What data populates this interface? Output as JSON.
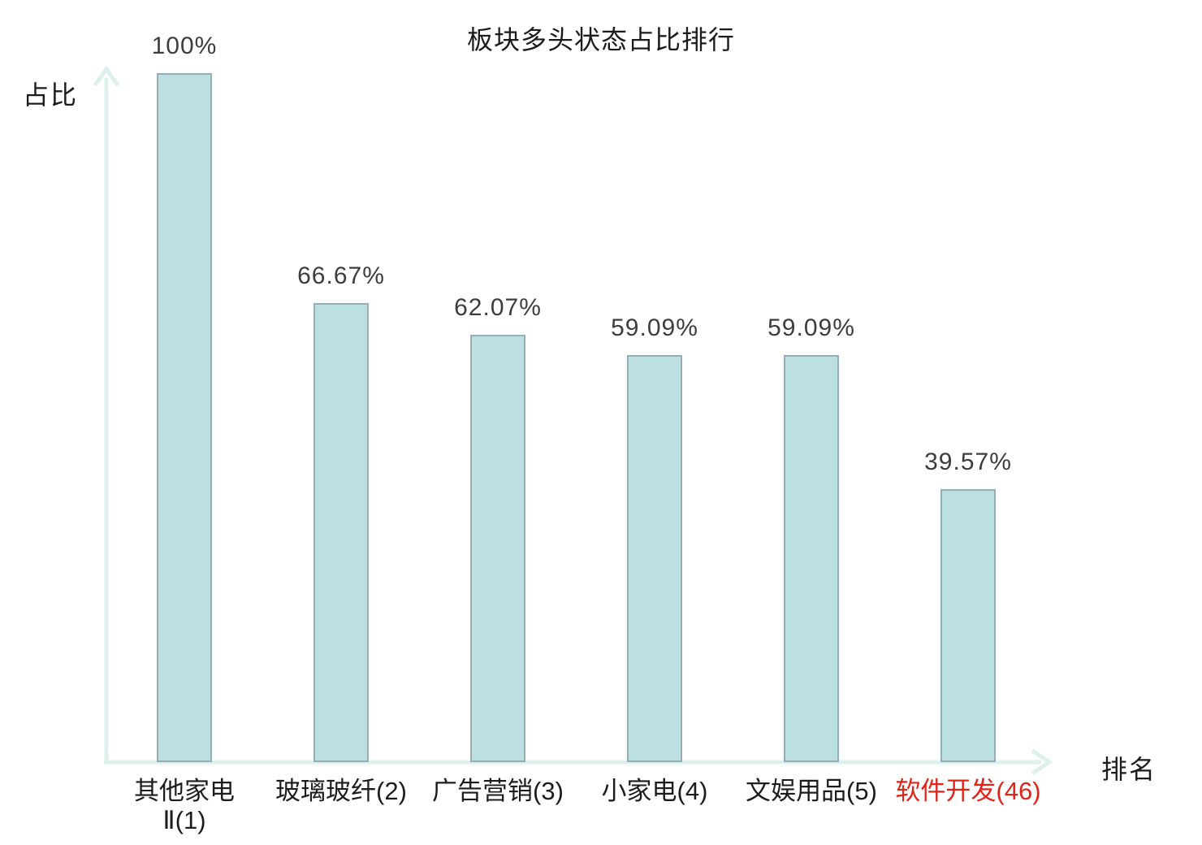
{
  "title": "板块多头状态占比排行",
  "axes": {
    "y_label": "占比",
    "x_label": "排名"
  },
  "colors": {
    "bar_fill": "#bddfe2",
    "bar_border": "#93afb3",
    "axis": "#def0ee",
    "value_label": "#3d3d3d",
    "category_label": "#1c1c1c",
    "category_highlight": "#e2231a",
    "background": "#ffffff"
  },
  "chart_data": {
    "type": "bar",
    "title": "板块多头状态占比排行",
    "xlabel": "排名",
    "ylabel": "占比",
    "ylim": [
      0,
      100
    ],
    "grid": false,
    "legend": false,
    "categories": [
      "其他家电Ⅱ(1)",
      "玻璃玻纤(2)",
      "广告营销(3)",
      "小家电(4)",
      "文娱用品(5)",
      "软件开发(46)"
    ],
    "category_display": [
      "其他家电\nⅡ(1)",
      "玻璃玻纤(2)",
      "广告营销(3)",
      "小家电(4)",
      "文娱用品(5)",
      "软件开发(46)"
    ],
    "values": [
      100,
      66.67,
      62.07,
      59.09,
      59.09,
      39.57
    ],
    "value_labels": [
      "100%",
      "66.67%",
      "62.07%",
      "59.09%",
      "59.09%",
      "39.57%"
    ],
    "highlight_index": 5,
    "bar_color": "#bddfe2"
  }
}
